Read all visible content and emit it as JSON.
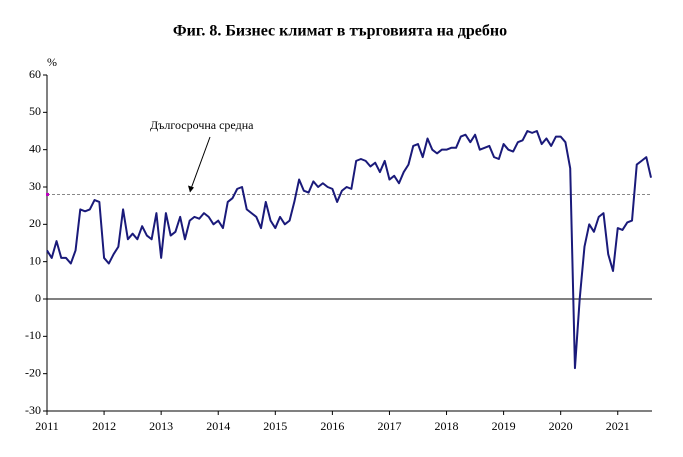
{
  "chart_data": {
    "type": "line",
    "title": "Фиг. 8. Бизнес климат в търговията на дребно",
    "y_unit": "%",
    "reference_line": {
      "value": 28,
      "label": "Дългосрочна средна",
      "color": "#888888"
    },
    "x": [
      2011,
      2011.083,
      2011.167,
      2011.25,
      2011.333,
      2011.417,
      2011.5,
      2011.583,
      2011.667,
      2011.75,
      2011.833,
      2011.917,
      2012,
      2012.083,
      2012.167,
      2012.25,
      2012.333,
      2012.417,
      2012.5,
      2012.583,
      2012.667,
      2012.75,
      2012.833,
      2012.917,
      2013,
      2013.083,
      2013.167,
      2013.25,
      2013.333,
      2013.417,
      2013.5,
      2013.583,
      2013.667,
      2013.75,
      2013.833,
      2013.917,
      2014,
      2014.083,
      2014.167,
      2014.25,
      2014.333,
      2014.417,
      2014.5,
      2014.583,
      2014.667,
      2014.75,
      2014.833,
      2014.917,
      2015,
      2015.083,
      2015.167,
      2015.25,
      2015.333,
      2015.417,
      2015.5,
      2015.583,
      2015.667,
      2015.75,
      2015.833,
      2015.917,
      2016,
      2016.083,
      2016.167,
      2016.25,
      2016.333,
      2016.417,
      2016.5,
      2016.583,
      2016.667,
      2016.75,
      2016.833,
      2016.917,
      2017,
      2017.083,
      2017.167,
      2017.25,
      2017.333,
      2017.417,
      2017.5,
      2017.583,
      2017.667,
      2017.75,
      2017.833,
      2017.917,
      2018,
      2018.083,
      2018.167,
      2018.25,
      2018.333,
      2018.417,
      2018.5,
      2018.583,
      2018.667,
      2018.75,
      2018.833,
      2018.917,
      2019,
      2019.083,
      2019.167,
      2019.25,
      2019.333,
      2019.417,
      2019.5,
      2019.583,
      2019.667,
      2019.75,
      2019.833,
      2019.917,
      2020,
      2020.083,
      2020.167,
      2020.25,
      2020.333,
      2020.417,
      2020.5,
      2020.583,
      2020.667,
      2020.75,
      2020.833,
      2020.917,
      2021,
      2021.083,
      2021.167,
      2021.25,
      2021.333,
      2021.417,
      2021.5,
      2021.583
    ],
    "series": [
      {
        "color": "#1a1a7a",
        "values": [
          13,
          11,
          15.5,
          11,
          11,
          9.5,
          13,
          24,
          23.5,
          24,
          26.5,
          26,
          11,
          9.5,
          12,
          14,
          24,
          16,
          17.5,
          16,
          19.5,
          17,
          16,
          23,
          11,
          23,
          17,
          18,
          22,
          16,
          21,
          22,
          21.5,
          23,
          22,
          20,
          21,
          19,
          26,
          27,
          29.5,
          30,
          24,
          23,
          22,
          19,
          26,
          21,
          19,
          22,
          20,
          21,
          26,
          32,
          29,
          28.5,
          31.5,
          30,
          31,
          30,
          29.5,
          26,
          29,
          30,
          29.5,
          37,
          37.5,
          37,
          35.5,
          36.5,
          34,
          37,
          32,
          33,
          31,
          34,
          36,
          41,
          41.5,
          38,
          43,
          40,
          39,
          40,
          40,
          40.5,
          40.5,
          43.5,
          44,
          42,
          44,
          40,
          40.5,
          41,
          38,
          37.5,
          41.5,
          40,
          39.5,
          42,
          42.5,
          45,
          44.5,
          45,
          41.5,
          43,
          41,
          43.5,
          43.5,
          42,
          35,
          -18.5,
          0,
          14,
          20,
          18,
          22,
          23,
          12,
          7.5,
          19,
          18.5,
          20.5,
          21,
          36,
          37,
          38,
          32.5
        ]
      }
    ],
    "xlim": [
      2011,
      2021.6
    ],
    "xticks": [
      2011,
      2012,
      2013,
      2014,
      2015,
      2016,
      2017,
      2018,
      2019,
      2020,
      2021
    ],
    "ylim": [
      -30,
      60
    ],
    "yticks": [
      -30,
      -20,
      -10,
      0,
      10,
      20,
      30,
      40,
      50,
      60
    ]
  }
}
